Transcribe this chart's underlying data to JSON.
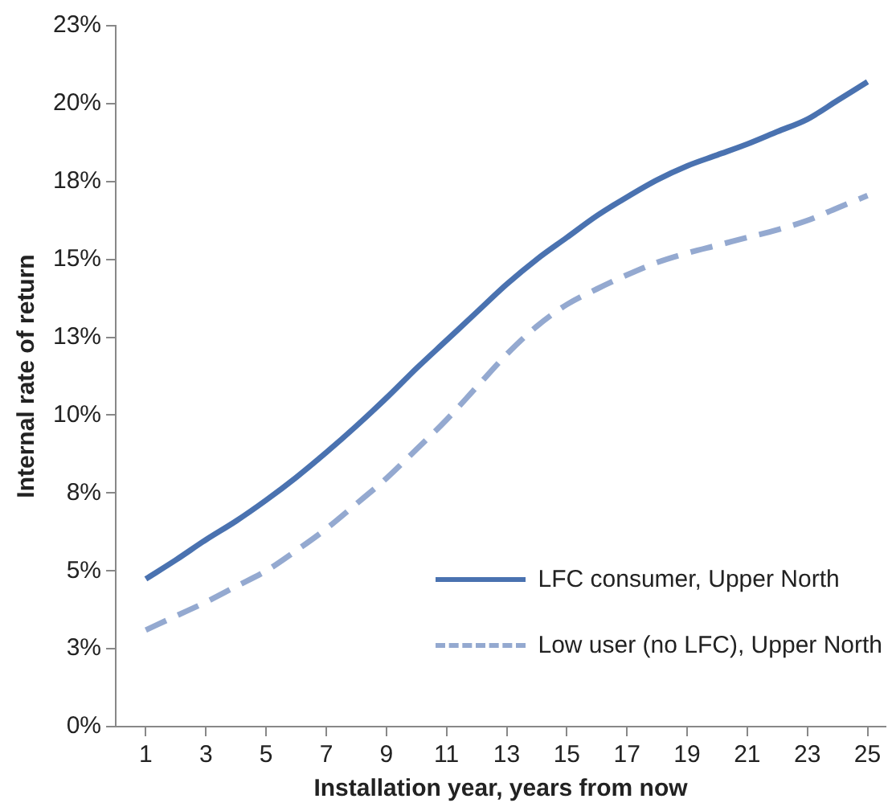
{
  "chart_data": {
    "type": "line",
    "xlabel": "Installation year, years from now",
    "ylabel": "Internal rate of return",
    "x": [
      1,
      2,
      3,
      4,
      5,
      6,
      7,
      8,
      9,
      10,
      11,
      12,
      13,
      14,
      15,
      16,
      17,
      18,
      19,
      20,
      21,
      22,
      23,
      24,
      25
    ],
    "xlim": [
      0,
      25.6
    ],
    "xticks": [
      1,
      3,
      5,
      7,
      9,
      11,
      13,
      15,
      17,
      19,
      21,
      23,
      25
    ],
    "ylim": [
      0,
      22.5
    ],
    "yticks": [
      {
        "value": 0,
        "label": "0%"
      },
      {
        "value": 2.5,
        "label": "3%"
      },
      {
        "value": 5,
        "label": "5%"
      },
      {
        "value": 7.5,
        "label": "8%"
      },
      {
        "value": 10,
        "label": "10%"
      },
      {
        "value": 12.5,
        "label": "13%"
      },
      {
        "value": 15,
        "label": "15%"
      },
      {
        "value": 17.5,
        "label": "18%"
      },
      {
        "value": 20,
        "label": "20%"
      },
      {
        "value": 22.5,
        "label": "23%"
      }
    ],
    "legend": "bottom right",
    "marker": "none",
    "series": [
      {
        "name": "LFC consumer, Upper North",
        "color": "#4a72b0",
        "line_style": "solid",
        "values": [
          4.74,
          5.35,
          6.0,
          6.6,
          7.27,
          8.0,
          8.8,
          9.65,
          10.55,
          11.5,
          12.4,
          13.3,
          14.2,
          15.0,
          15.7,
          16.4,
          17.0,
          17.55,
          18.0,
          18.35,
          18.7,
          19.1,
          19.5,
          20.1,
          20.7
        ]
      },
      {
        "name": "Low user (no LFC), Upper North",
        "color": "#94a9d0",
        "line_style": "dashed",
        "values": [
          3.1,
          3.55,
          4.0,
          4.5,
          5.0,
          5.65,
          6.35,
          7.15,
          7.97,
          8.9,
          9.85,
          10.9,
          11.95,
          12.85,
          13.55,
          14.05,
          14.5,
          14.9,
          15.2,
          15.45,
          15.7,
          15.95,
          16.25,
          16.65,
          17.05
        ]
      }
    ]
  }
}
